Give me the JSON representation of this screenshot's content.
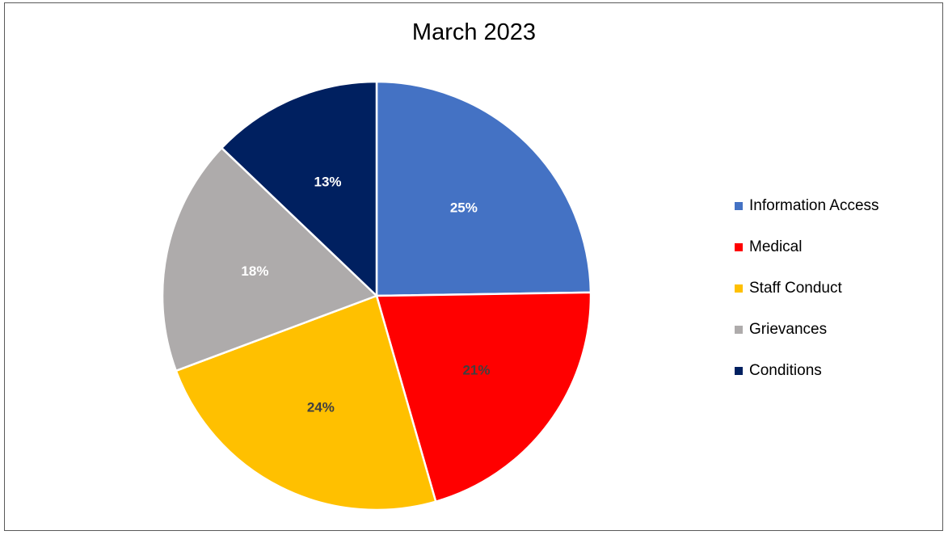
{
  "chart_data": {
    "type": "pie",
    "title": "March 2023",
    "legend_position": "right",
    "slices": [
      {
        "label": "Information Access",
        "value": 25,
        "value_label": "25%",
        "color": "#4472C4",
        "label_color": "#FFFFFF"
      },
      {
        "label": "Medical",
        "value": 21,
        "value_label": "21%",
        "color": "#FF0000",
        "label_color": "#404040"
      },
      {
        "label": "Staff Conduct",
        "value": 24,
        "value_label": "24%",
        "color": "#FFC000",
        "label_color": "#404040"
      },
      {
        "label": "Grievances",
        "value": 18,
        "value_label": "18%",
        "color": "#AEABAB",
        "label_color": "#FFFFFF"
      },
      {
        "label": "Conditions",
        "value": 13,
        "value_label": "13%",
        "color": "#002060",
        "label_color": "#FFFFFF"
      }
    ]
  }
}
